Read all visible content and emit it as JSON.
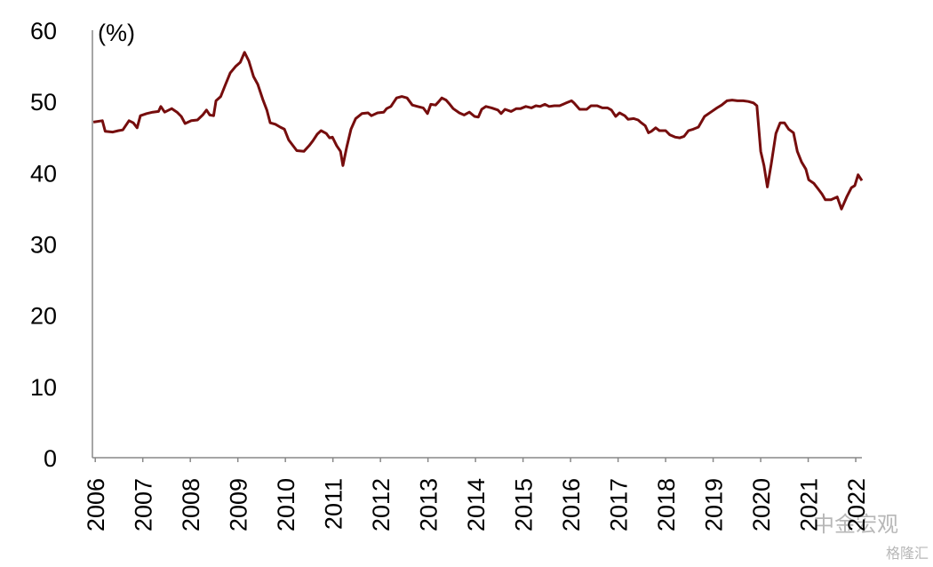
{
  "chart_data": {
    "type": "line",
    "unit_label": "(%)",
    "watermark": "中金宏观",
    "watermark2": "格隆汇",
    "xlim": [
      2005.94,
      2022.13
    ],
    "xticks": [
      2006,
      2007,
      2008,
      2009,
      2010,
      2011,
      2012,
      2013,
      2014,
      2015,
      2016,
      2017,
      2018,
      2019,
      2020,
      2021,
      2022
    ],
    "ylim": [
      0,
      60
    ],
    "yticks": [
      0,
      10,
      20,
      30,
      40,
      50,
      60
    ],
    "grid": false,
    "series": [
      {
        "color": "#760d0d",
        "x": [
          2005.96,
          2006.15,
          2006.21,
          2006.37,
          2006.49,
          2006.58,
          2006.71,
          2006.8,
          2006.88,
          2006.95,
          2007.08,
          2007.21,
          2007.33,
          2007.38,
          2007.46,
          2007.61,
          2007.72,
          2007.81,
          2007.89,
          2008.02,
          2008.15,
          2008.26,
          2008.34,
          2008.41,
          2008.49,
          2008.54,
          2008.64,
          2008.73,
          2008.84,
          2008.95,
          2009.05,
          2009.14,
          2009.23,
          2009.33,
          2009.42,
          2009.53,
          2009.61,
          2009.68,
          2009.79,
          2009.89,
          2009.98,
          2010.07,
          2010.24,
          2010.39,
          2010.5,
          2010.58,
          2010.67,
          2010.75,
          2010.86,
          2010.93,
          2010.99,
          2011.08,
          2011.16,
          2011.21,
          2011.29,
          2011.38,
          2011.48,
          2011.61,
          2011.74,
          2011.81,
          2011.94,
          2012.07,
          2012.13,
          2012.22,
          2012.34,
          2012.45,
          2012.56,
          2012.67,
          2012.78,
          2012.9,
          2012.99,
          2013.06,
          2013.16,
          2013.23,
          2013.29,
          2013.38,
          2013.46,
          2013.53,
          2013.66,
          2013.76,
          2013.87,
          2013.98,
          2014.06,
          2014.13,
          2014.22,
          2014.34,
          2014.47,
          2014.54,
          2014.62,
          2014.75,
          2014.86,
          2014.95,
          2015.06,
          2015.18,
          2015.27,
          2015.36,
          2015.46,
          2015.55,
          2015.66,
          2015.77,
          2015.91,
          2016.02,
          2016.07,
          2016.19,
          2016.34,
          2016.43,
          2016.56,
          2016.67,
          2016.78,
          2016.86,
          2016.95,
          2017.03,
          2017.14,
          2017.21,
          2017.33,
          2017.42,
          2017.49,
          2017.57,
          2017.64,
          2017.7,
          2017.79,
          2017.87,
          2018.0,
          2018.09,
          2018.2,
          2018.3,
          2018.39,
          2018.48,
          2018.58,
          2018.69,
          2018.82,
          2018.95,
          2019.08,
          2019.18,
          2019.29,
          2019.4,
          2019.51,
          2019.63,
          2019.74,
          2019.85,
          2019.92,
          2020.0,
          2020.07,
          2020.14,
          2020.22,
          2020.32,
          2020.41,
          2020.5,
          2020.59,
          2020.69,
          2020.77,
          2020.86,
          2020.95,
          2021.01,
          2021.12,
          2021.2,
          2021.29,
          2021.36,
          2021.48,
          2021.61,
          2021.7,
          2021.81,
          2021.91,
          2021.98,
          2022.05,
          2022.13
        ],
        "values": [
          47.1,
          47.3,
          45.8,
          45.7,
          45.9,
          46.0,
          47.3,
          47.0,
          46.3,
          48.0,
          48.3,
          48.5,
          48.6,
          49.3,
          48.5,
          49.0,
          48.5,
          47.9,
          46.9,
          47.3,
          47.4,
          48.1,
          48.8,
          48.1,
          48.0,
          50.1,
          50.7,
          52.2,
          54.0,
          54.9,
          55.5,
          56.9,
          55.7,
          53.5,
          52.4,
          50.2,
          48.8,
          47.0,
          46.8,
          46.4,
          46.1,
          44.6,
          43.1,
          43.0,
          43.8,
          44.5,
          45.4,
          45.9,
          45.5,
          44.9,
          45.0,
          43.8,
          43.0,
          41.0,
          43.6,
          46.1,
          47.6,
          48.3,
          48.4,
          48.0,
          48.4,
          48.5,
          49.0,
          49.3,
          50.5,
          50.7,
          50.5,
          49.5,
          49.3,
          49.1,
          48.3,
          49.6,
          49.5,
          50.0,
          50.5,
          50.2,
          49.6,
          49.0,
          48.4,
          48.1,
          48.5,
          47.9,
          47.8,
          48.9,
          49.3,
          49.1,
          48.8,
          48.3,
          48.9,
          48.6,
          49.0,
          49.0,
          49.3,
          49.1,
          49.4,
          49.3,
          49.6,
          49.3,
          49.4,
          49.4,
          49.8,
          50.1,
          49.8,
          48.9,
          48.9,
          49.4,
          49.4,
          49.1,
          49.1,
          48.8,
          47.9,
          48.4,
          48.0,
          47.5,
          47.6,
          47.4,
          47.0,
          46.6,
          45.6,
          45.8,
          46.3,
          45.9,
          45.9,
          45.3,
          45.0,
          44.9,
          45.1,
          45.9,
          46.1,
          46.4,
          47.9,
          48.5,
          49.1,
          49.5,
          50.1,
          50.2,
          50.1,
          50.1,
          50.0,
          49.8,
          49.4,
          43.0,
          41.0,
          38.0,
          41.1,
          45.5,
          47.0,
          47.0,
          46.1,
          45.6,
          43.0,
          41.5,
          40.5,
          39.0,
          38.5,
          37.8,
          37.0,
          36.2,
          36.2,
          36.6,
          34.9,
          36.6,
          37.9,
          38.2,
          39.7,
          38.9
        ]
      }
    ]
  }
}
